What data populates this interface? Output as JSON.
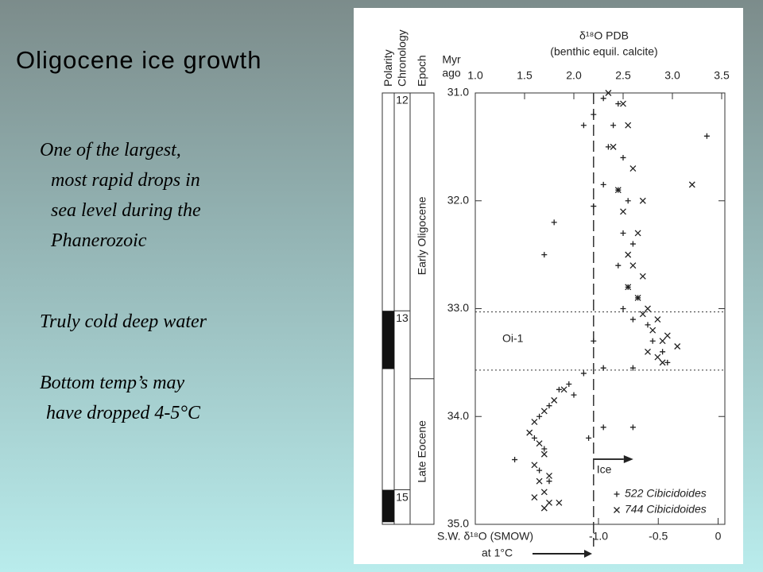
{
  "slide": {
    "title": "Oligocene ice growth",
    "paragraphs": [
      [
        "One of the largest,",
        "most rapid drops in",
        "sea level during the",
        "Phanerozoic"
      ],
      [
        "Truly cold deep water"
      ],
      [
        "Bottom temp’s may",
        "have dropped 4-5°C"
      ]
    ]
  },
  "chart_data": {
    "type": "scatter",
    "x_label": "δ¹⁸O PDB",
    "x_label_note": "(benthic equil. calcite)",
    "y_label": [
      "Myr",
      "ago"
    ],
    "x2_label": [
      "S.W. δ¹⁸O (SMOW)",
      "at 1°C"
    ],
    "xlim": [
      1.0,
      3.5
    ],
    "xticks": [
      {
        "value": 1.0,
        "label": "1.0"
      },
      {
        "value": 1.5,
        "label": "1.5"
      },
      {
        "value": 2.0,
        "label": "2.0"
      },
      {
        "value": 2.5,
        "label": "2.5"
      },
      {
        "value": 3.0,
        "label": "3.0"
      },
      {
        "value": 3.5,
        "label": "3.5"
      }
    ],
    "x2lim": [
      -2.03,
      0.03
    ],
    "x2ticks": [
      {
        "value": -1.0,
        "label": "-1.0"
      },
      {
        "value": -0.5,
        "label": "-0.5"
      },
      0
    ],
    "ylim": [
      31.0,
      35.0
    ],
    "yticks": [
      {
        "value": 31.0,
        "label": "31.0"
      },
      {
        "value": 32.0,
        "label": "32.0"
      },
      {
        "value": 33.0,
        "label": "33.0"
      },
      {
        "value": 34.0,
        "label": "34.0"
      },
      {
        "value": 35.0,
        "label": "35.0"
      }
    ],
    "columns": [
      "Polarity",
      "Chronology",
      "Epoch"
    ],
    "polarity_normal": [
      [
        33.02,
        33.56
      ],
      [
        34.68,
        34.98
      ]
    ],
    "chrons": [
      {
        "label": "12",
        "age": 31.0
      },
      {
        "label": "13",
        "age": 33.02
      },
      {
        "label": "15",
        "age": 34.68
      }
    ],
    "epochs": [
      {
        "name": "Early Oligocene",
        "from": 31.0,
        "to": 33.65
      },
      {
        "name": "Late Eocene",
        "from": 33.65,
        "to": 35.0
      }
    ],
    "event_lines": [
      33.03,
      33.57
    ],
    "event_label": "Oi-1",
    "ice_line": 2.2,
    "ice_label": "Ice",
    "series": [
      {
        "name": "522 Cibicidoides",
        "marker": "+",
        "color": "#222222",
        "x": [
          2.3,
          2.45,
          2.2,
          2.4,
          2.35,
          2.5,
          2.1,
          3.35,
          2.3,
          2.45,
          2.55,
          2.2,
          1.8,
          2.5,
          2.6,
          2.45,
          1.7,
          2.55,
          2.65,
          2.5,
          2.6,
          2.75,
          2.2,
          2.8,
          2.9,
          2.95,
          2.3,
          2.6,
          2.1,
          1.95,
          1.85,
          2.0,
          1.75,
          1.65,
          2.3,
          1.6,
          1.7,
          1.4,
          1.65,
          1.75,
          2.15,
          2.6
        ],
        "values": [
          31.05,
          31.1,
          31.2,
          31.3,
          31.5,
          31.6,
          31.3,
          31.4,
          31.85,
          31.9,
          32.0,
          32.05,
          32.2,
          32.3,
          32.4,
          32.6,
          32.5,
          32.8,
          32.9,
          33.0,
          33.1,
          33.15,
          33.3,
          33.3,
          33.4,
          33.5,
          33.55,
          33.55,
          33.6,
          33.7,
          33.75,
          33.8,
          33.9,
          34.0,
          34.1,
          34.2,
          34.3,
          34.4,
          34.5,
          34.6,
          34.2,
          34.1
        ]
      },
      {
        "name": "744 Cibicidoides",
        "marker": "x",
        "color": "#222222",
        "x": [
          2.35,
          2.5,
          2.55,
          2.4,
          2.6,
          2.45,
          2.7,
          2.5,
          2.65,
          2.55,
          2.6,
          2.7,
          2.55,
          2.65,
          2.75,
          2.7,
          2.85,
          2.8,
          2.95,
          2.9,
          3.05,
          2.75,
          2.85,
          2.9,
          1.9,
          1.8,
          1.7,
          1.6,
          1.55,
          1.65,
          1.7,
          1.6,
          1.75,
          1.65,
          1.7,
          1.6,
          1.75,
          1.7,
          1.85,
          3.2
        ],
        "values": [
          31.0,
          31.1,
          31.3,
          31.5,
          31.7,
          31.9,
          32.0,
          32.1,
          32.3,
          32.5,
          32.6,
          32.7,
          32.8,
          32.9,
          33.0,
          33.05,
          33.1,
          33.2,
          33.25,
          33.3,
          33.35,
          33.4,
          33.45,
          33.5,
          33.75,
          33.85,
          33.95,
          34.05,
          34.15,
          34.25,
          34.35,
          34.45,
          34.55,
          34.6,
          34.7,
          34.75,
          34.8,
          34.85,
          34.8,
          31.85
        ]
      }
    ]
  }
}
